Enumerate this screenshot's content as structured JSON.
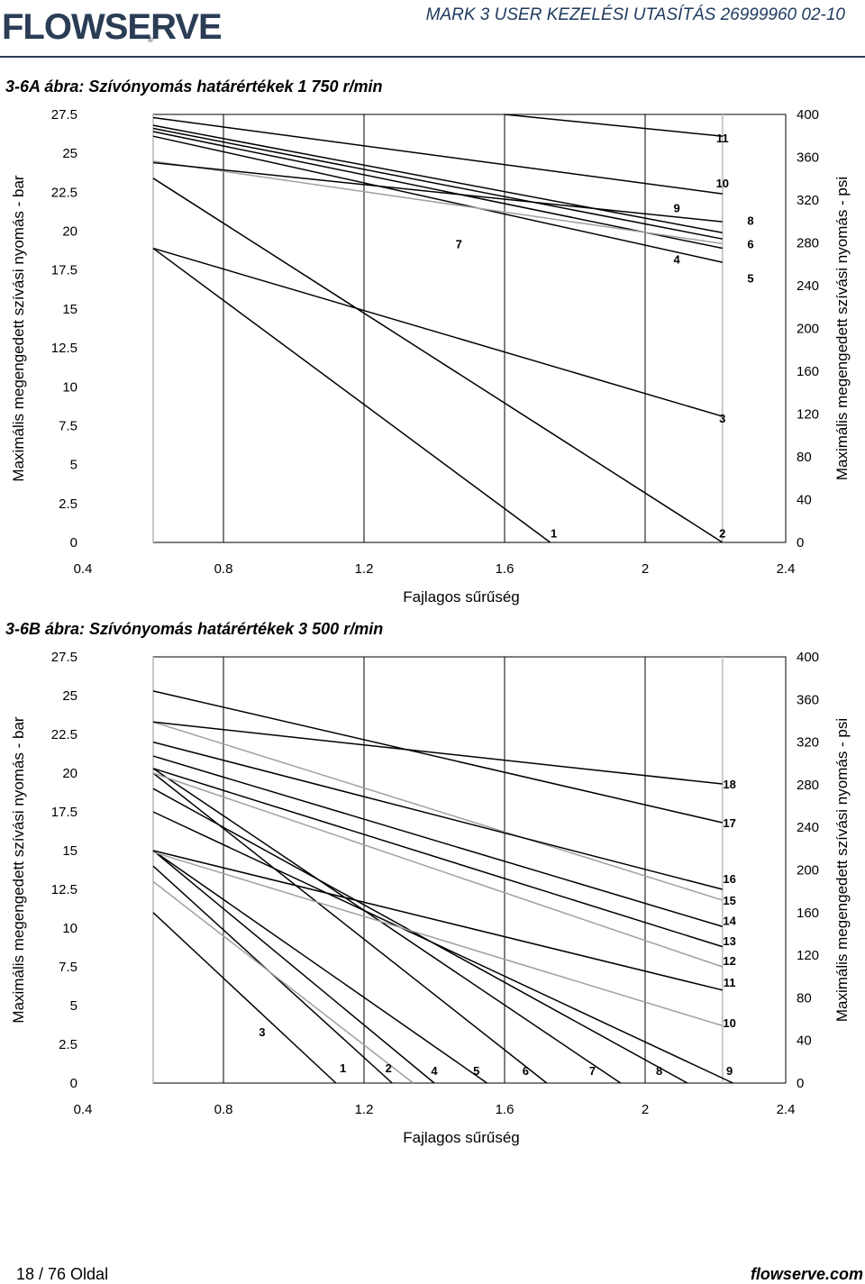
{
  "header": {
    "logo": "FLOWSERVE",
    "title": "MARK 3 USER KEZELÉSI UTASÍTÁS 26999960 02-10"
  },
  "footer": {
    "page": "18 / 76 Oldal",
    "site": "flowserve.com"
  },
  "chart_data": [
    {
      "type": "line",
      "title": "3-6A ábra:  Szívónyomás határértékek 1 750 r/min",
      "xlabel": "Fajlagos sűrűség",
      "ylabel": "Maximális megengedett szívási nyomás - bar",
      "y2label": "Maximális megengedett szívási nyomás - psi",
      "xlim": [
        0.4,
        2.4
      ],
      "ylim": [
        0,
        27.5
      ],
      "y2lim": [
        0,
        400
      ],
      "xticks": [
        "0.4",
        "0.8",
        "1.2",
        "1.6",
        "2",
        "2.4"
      ],
      "yticks": [
        "0",
        "2.5",
        "5",
        "7.5",
        "10",
        "12.5",
        "15",
        "17.5",
        "20",
        "22.5",
        "25",
        "27.5"
      ],
      "y2ticks": [
        "0",
        "40",
        "80",
        "120",
        "160",
        "200",
        "240",
        "280",
        "320",
        "360",
        "400"
      ],
      "grid_x": [
        0.6,
        0.8,
        1.2,
        1.6,
        2.0,
        2.22
      ],
      "series": [
        {
          "name": "1",
          "color": "#000000",
          "x": [
            0.6,
            1.73
          ],
          "y": [
            18.9,
            0
          ]
        },
        {
          "name": "2",
          "color": "#000000",
          "x": [
            0.6,
            2.22
          ],
          "y": [
            23.4,
            0
          ]
        },
        {
          "name": "3",
          "color": "#000000",
          "x": [
            0.6,
            2.22
          ],
          "y": [
            18.9,
            8.1
          ]
        },
        {
          "name": "4",
          "color": "#000000",
          "x": [
            0.6,
            2.22
          ],
          "y": [
            26.1,
            18.0
          ]
        },
        {
          "name": "5",
          "color": "#000000",
          "x": [
            0.6,
            2.22
          ],
          "y": [
            26.4,
            18.9
          ]
        },
        {
          "name": "6",
          "color": "#000000",
          "x": [
            0.6,
            2.22
          ],
          "y": [
            26.6,
            19.5
          ]
        },
        {
          "name": "7",
          "color": "#a0a0a0",
          "x": [
            0.6,
            2.22
          ],
          "y": [
            24.5,
            19.2
          ]
        },
        {
          "name": "8",
          "color": "#000000",
          "x": [
            0.6,
            2.22
          ],
          "y": [
            26.8,
            19.9
          ]
        },
        {
          "name": "9",
          "color": "#000000",
          "x": [
            0.6,
            2.22
          ],
          "y": [
            24.4,
            20.6
          ]
        },
        {
          "name": "10",
          "color": "#000000",
          "x": [
            0.6,
            2.22
          ],
          "y": [
            27.3,
            22.4
          ]
        },
        {
          "name": "11",
          "color": "#000000",
          "x": [
            1.6,
            2.22
          ],
          "y": [
            27.5,
            26.1
          ]
        }
      ],
      "labels": [
        {
          "text": "1",
          "x": 1.74,
          "y": 0.6
        },
        {
          "text": "2",
          "x": 2.22,
          "y": 0.6
        },
        {
          "text": "3",
          "x": 2.22,
          "y": 8.0
        },
        {
          "text": "4",
          "x": 2.09,
          "y": 18.2
        },
        {
          "text": "5",
          "x": 2.3,
          "y": 17.0
        },
        {
          "text": "6",
          "x": 2.3,
          "y": 19.2
        },
        {
          "text": "7",
          "x": 1.47,
          "y": 19.2
        },
        {
          "text": "8",
          "x": 2.3,
          "y": 20.7
        },
        {
          "text": "9",
          "x": 2.09,
          "y": 21.5
        },
        {
          "text": "10",
          "x": 2.22,
          "y": 23.1
        },
        {
          "text": "11",
          "x": 2.22,
          "y": 26.0
        }
      ]
    },
    {
      "type": "line",
      "title": "3-6B ábra: Szívónyomás határértékek 3 500 r/min",
      "xlabel": "Fajlagos sűrűség",
      "ylabel": "Maximális megengedett szívási nyomás - bar",
      "y2label": "Maximális megengedett szívási nyomás - psi",
      "xlim": [
        0.4,
        2.4
      ],
      "ylim": [
        0,
        27.5
      ],
      "y2lim": [
        0,
        400
      ],
      "xticks": [
        "0.4",
        "0.8",
        "1.2",
        "1.6",
        "2",
        "2.4"
      ],
      "yticks": [
        "0",
        "2.5",
        "5",
        "7.5",
        "10",
        "12.5",
        "15",
        "17.5",
        "20",
        "22.5",
        "25",
        "27.5"
      ],
      "y2ticks": [
        "0",
        "40",
        "80",
        "120",
        "160",
        "200",
        "240",
        "280",
        "320",
        "360",
        "400"
      ],
      "grid_x": [
        0.6,
        0.8,
        1.2,
        1.6,
        2.0,
        2.22
      ],
      "series": [
        {
          "name": "1",
          "color": "#000000",
          "x": [
            0.6,
            1.12
          ],
          "y": [
            11.0,
            0
          ]
        },
        {
          "name": "2",
          "color": "#000000",
          "x": [
            0.6,
            1.28
          ],
          "y": [
            14.0,
            0
          ]
        },
        {
          "name": "3",
          "color": "#a0a0a0",
          "x": [
            0.6,
            1.34
          ],
          "y": [
            13.0,
            0
          ]
        },
        {
          "name": "4",
          "color": "#000000",
          "x": [
            0.6,
            1.4
          ],
          "y": [
            15.0,
            0
          ]
        },
        {
          "name": "5",
          "color": "#000000",
          "x": [
            0.6,
            1.55
          ],
          "y": [
            15.0,
            0
          ]
        },
        {
          "name": "6",
          "color": "#000000",
          "x": [
            0.6,
            1.72
          ],
          "y": [
            20.0,
            0
          ]
        },
        {
          "name": "7",
          "color": "#000000",
          "x": [
            0.6,
            1.93
          ],
          "y": [
            20.3,
            0
          ]
        },
        {
          "name": "8",
          "color": "#000000",
          "x": [
            0.6,
            2.12
          ],
          "y": [
            19.0,
            0
          ]
        },
        {
          "name": "9",
          "color": "#000000",
          "x": [
            0.6,
            2.25
          ],
          "y": [
            17.5,
            0
          ]
        },
        {
          "name": "10",
          "color": "#a0a0a0",
          "x": [
            0.6,
            2.22
          ],
          "y": [
            14.9,
            3.7
          ]
        },
        {
          "name": "11",
          "color": "#000000",
          "x": [
            0.6,
            2.22
          ],
          "y": [
            15.0,
            6.0
          ]
        },
        {
          "name": "12",
          "color": "#a0a0a0",
          "x": [
            0.6,
            2.22
          ],
          "y": [
            20.0,
            7.5
          ]
        },
        {
          "name": "13",
          "color": "#000000",
          "x": [
            0.6,
            2.22
          ],
          "y": [
            20.3,
            8.8
          ]
        },
        {
          "name": "14",
          "color": "#000000",
          "x": [
            0.6,
            2.22
          ],
          "y": [
            21.1,
            10.1
          ]
        },
        {
          "name": "15",
          "color": "#a0a0a0",
          "x": [
            0.6,
            2.22
          ],
          "y": [
            23.3,
            11.8
          ]
        },
        {
          "name": "16",
          "color": "#000000",
          "x": [
            0.6,
            2.22
          ],
          "y": [
            22.0,
            12.5
          ]
        },
        {
          "name": "17",
          "color": "#000000",
          "x": [
            0.6,
            2.22
          ],
          "y": [
            25.3,
            16.8
          ]
        },
        {
          "name": "18",
          "color": "#000000",
          "x": [
            0.6,
            2.22
          ],
          "y": [
            23.3,
            19.3
          ]
        }
      ],
      "labels": [
        {
          "text": "1",
          "x": 1.14,
          "y": 1.0
        },
        {
          "text": "2",
          "x": 1.27,
          "y": 1.0
        },
        {
          "text": "3",
          "x": 0.91,
          "y": 3.3
        },
        {
          "text": "4",
          "x": 1.4,
          "y": 0.8
        },
        {
          "text": "5",
          "x": 1.52,
          "y": 0.8
        },
        {
          "text": "6",
          "x": 1.66,
          "y": 0.8
        },
        {
          "text": "7",
          "x": 1.85,
          "y": 0.8
        },
        {
          "text": "8",
          "x": 2.04,
          "y": 0.8
        },
        {
          "text": "9",
          "x": 2.24,
          "y": 0.8
        },
        {
          "text": "10",
          "x": 2.24,
          "y": 3.9
        },
        {
          "text": "11",
          "x": 2.24,
          "y": 6.5
        },
        {
          "text": "12",
          "x": 2.24,
          "y": 7.9
        },
        {
          "text": "13",
          "x": 2.24,
          "y": 9.2
        },
        {
          "text": "14",
          "x": 2.24,
          "y": 10.5
        },
        {
          "text": "15",
          "x": 2.24,
          "y": 11.8
        },
        {
          "text": "16",
          "x": 2.24,
          "y": 13.2
        },
        {
          "text": "17",
          "x": 2.24,
          "y": 16.8
        },
        {
          "text": "18",
          "x": 2.24,
          "y": 19.3
        }
      ]
    }
  ]
}
